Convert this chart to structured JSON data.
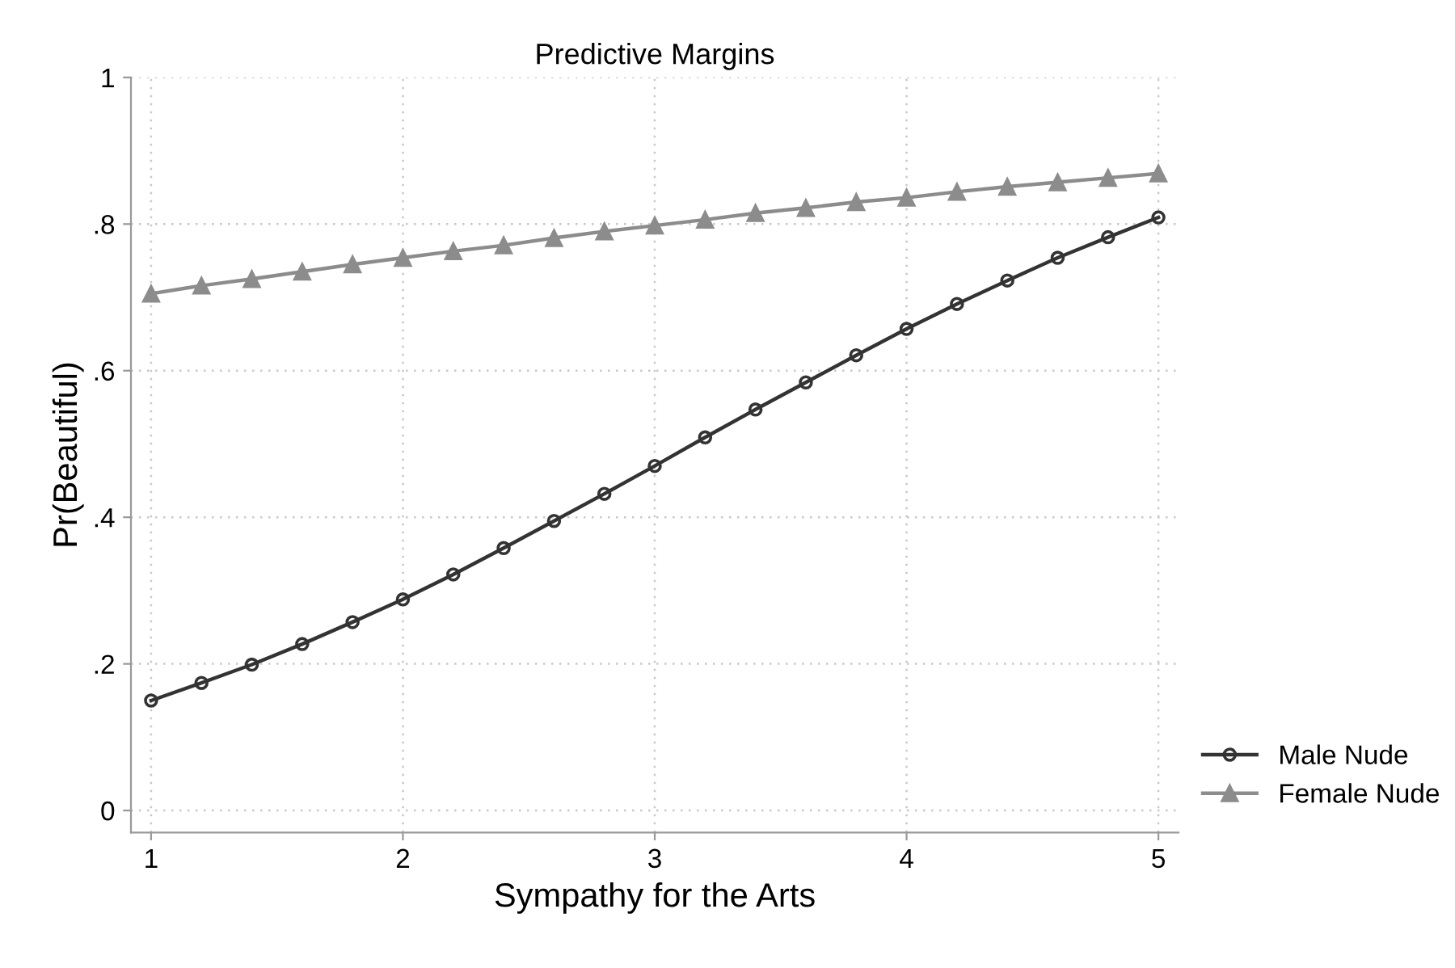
{
  "chart_data": {
    "type": "line",
    "title": "Predictive Margins",
    "xlabel": "Sympathy for the Arts",
    "ylabel": "Pr(Beautiful)",
    "x": [
      1,
      1.2,
      1.4,
      1.6,
      1.8,
      2,
      2.2,
      2.4,
      2.6,
      2.8,
      3,
      3.2,
      3.4,
      3.6,
      3.8,
      4,
      4.2,
      4.4,
      4.6,
      4.8,
      5
    ],
    "series": [
      {
        "name": "Male Nude",
        "color": "#333333",
        "marker": "circle",
        "values": [
          0.15,
          0.174,
          0.199,
          0.227,
          0.257,
          0.288,
          0.322,
          0.358,
          0.395,
          0.432,
          0.47,
          0.509,
          0.547,
          0.584,
          0.621,
          0.657,
          0.691,
          0.723,
          0.754,
          0.782,
          0.809
        ]
      },
      {
        "name": "Female Nude",
        "color": "#8c8c8c",
        "marker": "triangle",
        "values": [
          0.705,
          0.716,
          0.725,
          0.735,
          0.745,
          0.754,
          0.763,
          0.771,
          0.781,
          0.79,
          0.798,
          0.806,
          0.815,
          0.822,
          0.83,
          0.836,
          0.844,
          0.851,
          0.857,
          0.863,
          0.869
        ]
      }
    ],
    "xlim": [
      0.92,
      5.08
    ],
    "xticks": [
      1,
      2,
      3,
      4,
      5
    ],
    "ylim": [
      -0.03,
      1
    ],
    "yticks": [
      0,
      {
        "value": 0.2,
        "label": ".2"
      },
      {
        "value": 0.4,
        "label": ".4"
      },
      {
        "value": 0.6,
        "label": ".6"
      },
      {
        "value": 0.8,
        "label": ".8"
      },
      1
    ],
    "grid": true,
    "legend": "bottom right",
    "line_style": "solid"
  }
}
